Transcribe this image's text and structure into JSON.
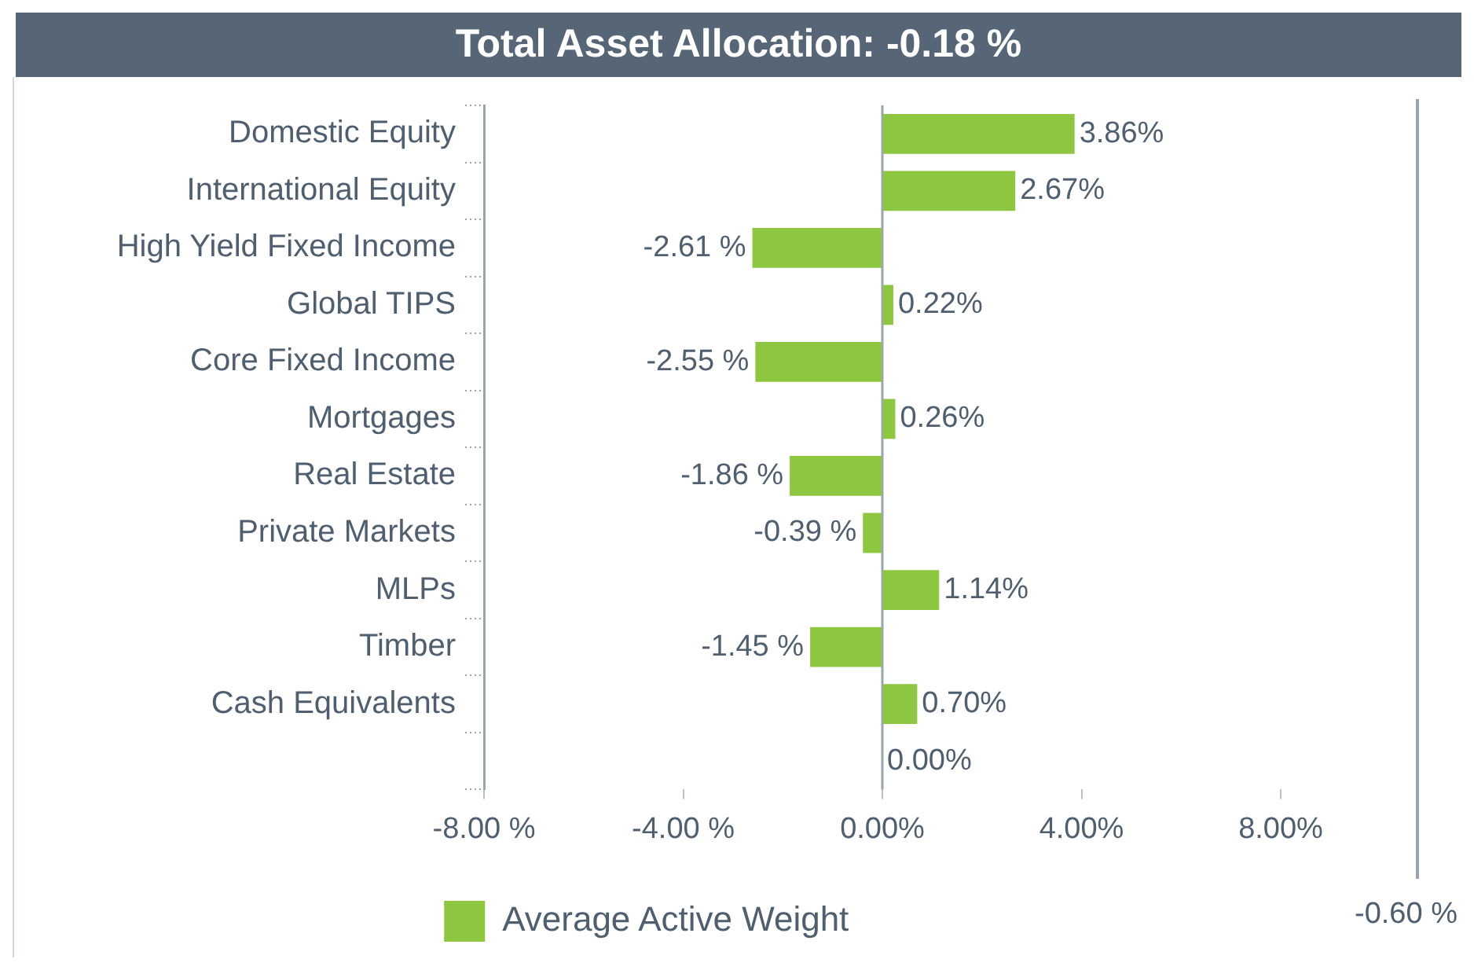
{
  "chart_data": [
    {
      "type": "bar",
      "title": "Total Asset Allocation: -0.18 %",
      "orientation": "horizontal",
      "categories": [
        "Domestic Equity",
        "International Equity",
        "High Yield Fixed Income",
        "Global TIPS",
        "Core Fixed Income",
        "Mortgages",
        "Real Estate",
        "Private Markets",
        "MLPs",
        "Timber",
        "Cash Equivalents",
        null
      ],
      "series": [
        {
          "name": "Average Active Weight",
          "color": "#8dc63f",
          "values": [
            3.86,
            2.67,
            -2.61,
            0.22,
            -2.55,
            0.26,
            -1.86,
            -0.39,
            1.14,
            -1.45,
            0.7,
            0.0
          ],
          "value_labels": [
            "3.86%",
            "2.67%",
            "-2.61 %",
            "0.22%",
            "-2.55 %",
            "0.26%",
            "-1.86 %",
            "-0.39 %",
            "1.14%",
            "-1.45 %",
            "0.70%",
            "0.00%"
          ]
        }
      ],
      "xlim": [
        -8,
        8
      ],
      "xticks": [
        {
          "value": -8,
          "label": "-8.00 %"
        },
        {
          "value": -4,
          "label": "-4.00 %"
        },
        {
          "value": 0,
          "label": "0.00%"
        },
        {
          "value": 4,
          "label": "4.00%"
        },
        {
          "value": 8,
          "label": "8.00%"
        }
      ],
      "ref_lines": [
        {
          "axis": "x",
          "value": 0,
          "color": "#9aa5b1"
        }
      ],
      "grid": false,
      "legend": "bottom"
    },
    {
      "type": "other",
      "annotations": [
        "-0.60 %"
      ]
    }
  ]
}
